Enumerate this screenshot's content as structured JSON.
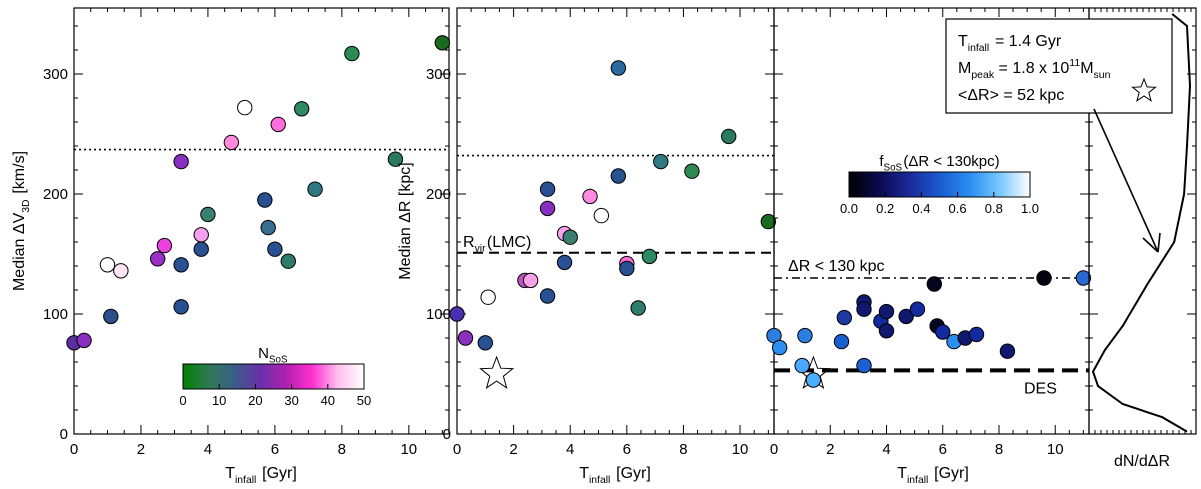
{
  "chart_data": [
    {
      "type": "scatter",
      "panel": "left",
      "ylabel": {
        "prefix": "Median ΔV",
        "sub": "3D",
        "suffix": " [km/s]"
      },
      "xlabel": {
        "prefix": "T",
        "sub": "infall",
        "suffix": " [Gyr]"
      },
      "xlim": [
        0,
        11.2
      ],
      "ylim": [
        0,
        355
      ],
      "xticks": [
        "0",
        "2",
        "4",
        "6",
        "8",
        "10"
      ],
      "yticks": [
        "0",
        "100",
        "200",
        "300"
      ],
      "reference_lines": [
        {
          "style": "dotted",
          "y": 237
        }
      ],
      "colorbar": {
        "title": {
          "prefix": "N",
          "sub": "SoS"
        },
        "range": [
          0,
          50
        ],
        "ticks": [
          "0",
          "10",
          "20",
          "30",
          "40",
          "50"
        ],
        "stops": [
          "#008000",
          "#2f7a55",
          "#3a5e8a",
          "#6a2fa8",
          "#b020b0",
          "#ff30d0",
          "#ffc0f0",
          "#ffffff"
        ]
      },
      "points": [
        {
          "x": 0.0,
          "y": 76,
          "c": "#5a2fa0"
        },
        {
          "x": 0.3,
          "y": 78,
          "c": "#8a2fc0"
        },
        {
          "x": 1.0,
          "y": 141,
          "c": "#ffffff"
        },
        {
          "x": 1.1,
          "y": 98,
          "c": "#2d4f8c"
        },
        {
          "x": 1.4,
          "y": 136,
          "c": "#ffe5f5"
        },
        {
          "x": 2.5,
          "y": 146,
          "c": "#9a30c8"
        },
        {
          "x": 2.7,
          "y": 157,
          "c": "#ee40e0"
        },
        {
          "x": 3.2,
          "y": 106,
          "c": "#2a5094"
        },
        {
          "x": 3.2,
          "y": 141,
          "c": "#2a5094"
        },
        {
          "x": 3.2,
          "y": 227,
          "c": "#8a30c0"
        },
        {
          "x": 3.8,
          "y": 166,
          "c": "#f5a0f0"
        },
        {
          "x": 3.8,
          "y": 154,
          "c": "#2a5094"
        },
        {
          "x": 4.0,
          "y": 183,
          "c": "#3a8070"
        },
        {
          "x": 4.7,
          "y": 243,
          "c": "#ff8ae0"
        },
        {
          "x": 5.1,
          "y": 272,
          "c": "#ffffff"
        },
        {
          "x": 5.7,
          "y": 195,
          "c": "#2a5094"
        },
        {
          "x": 5.8,
          "y": 172,
          "c": "#3a6e90"
        },
        {
          "x": 6.0,
          "y": 154,
          "c": "#2a5094"
        },
        {
          "x": 6.1,
          "y": 258,
          "c": "#ff6cdc"
        },
        {
          "x": 6.4,
          "y": 144,
          "c": "#2e7d6a"
        },
        {
          "x": 6.8,
          "y": 271,
          "c": "#2e8a60"
        },
        {
          "x": 7.2,
          "y": 204,
          "c": "#2f7a80"
        },
        {
          "x": 8.3,
          "y": 317,
          "c": "#2a8a50"
        },
        {
          "x": 9.6,
          "y": 229,
          "c": "#2a7a60"
        },
        {
          "x": 11.0,
          "y": 326,
          "c": "#1a6a20"
        }
      ]
    },
    {
      "type": "scatter",
      "panel": "middle",
      "ylabel": {
        "prefix": "Median ΔR",
        "sub": "",
        "suffix": " [kpc]"
      },
      "xlabel": {
        "prefix": "T",
        "sub": "infall",
        "suffix": " [Gyr]"
      },
      "xlim": [
        0,
        11.2
      ],
      "ylim": [
        0,
        355
      ],
      "xticks": [
        "0",
        "2",
        "4",
        "6",
        "8",
        "10"
      ],
      "yticks": [
        "0",
        "100",
        "200",
        "300"
      ],
      "reference_lines": [
        {
          "style": "dotted",
          "y": 232
        },
        {
          "style": "dashed",
          "y": 151,
          "label": {
            "prefix": "R",
            "sub": "vir",
            "suffix": "(LMC)"
          }
        }
      ],
      "star": {
        "x": 1.4,
        "y": 50
      },
      "points": [
        {
          "x": 0.0,
          "y": 100,
          "c": "#4a2fb0"
        },
        {
          "x": 0.3,
          "y": 80,
          "c": "#8a2fc0"
        },
        {
          "x": 1.0,
          "y": 76,
          "c": "#2a5094"
        },
        {
          "x": 1.1,
          "y": 114,
          "c": "#ffffff"
        },
        {
          "x": 2.4,
          "y": 128,
          "c": "#c050c0"
        },
        {
          "x": 2.6,
          "y": 128,
          "c": "#f8a0e8"
        },
        {
          "x": 3.2,
          "y": 204,
          "c": "#2a5094"
        },
        {
          "x": 3.2,
          "y": 188,
          "c": "#8a30c0"
        },
        {
          "x": 3.2,
          "y": 115,
          "c": "#2a5094"
        },
        {
          "x": 3.8,
          "y": 167,
          "c": "#f5a0f0"
        },
        {
          "x": 3.8,
          "y": 143,
          "c": "#2a5094"
        },
        {
          "x": 4.0,
          "y": 164,
          "c": "#3a8070"
        },
        {
          "x": 4.7,
          "y": 198,
          "c": "#ff8ae0"
        },
        {
          "x": 5.1,
          "y": 182,
          "c": "#ffffff"
        },
        {
          "x": 5.7,
          "y": 305,
          "c": "#2a6aa0"
        },
        {
          "x": 5.7,
          "y": 215,
          "c": "#2a5094"
        },
        {
          "x": 6.0,
          "y": 142,
          "c": "#ff6cdc"
        },
        {
          "x": 6.0,
          "y": 138,
          "c": "#2a5094"
        },
        {
          "x": 6.4,
          "y": 105,
          "c": "#2e7d6a"
        },
        {
          "x": 6.8,
          "y": 148,
          "c": "#2e8a60"
        },
        {
          "x": 7.2,
          "y": 227,
          "c": "#2f7a80"
        },
        {
          "x": 8.3,
          "y": 219,
          "c": "#2a8a50"
        },
        {
          "x": 9.6,
          "y": 248,
          "c": "#2a7a60"
        },
        {
          "x": 11.0,
          "y": 177,
          "c": "#1a6a20"
        }
      ]
    },
    {
      "type": "scatter",
      "panel": "right",
      "xlabel": {
        "prefix": "T",
        "sub": "infall",
        "suffix": " [Gyr]"
      },
      "xlim": [
        0,
        11.2
      ],
      "ylim": [
        0,
        355
      ],
      "xticks": [
        "0",
        "2",
        "4",
        "6",
        "8",
        "10"
      ],
      "reference_lines": [
        {
          "style": "dashdot",
          "y": 130,
          "label": "ΔR < 130 kpc"
        },
        {
          "style": "thickdash",
          "y": 53,
          "label": "DES"
        }
      ],
      "star": {
        "x": 1.4,
        "y": 50
      },
      "colorbar": {
        "title": {
          "prefix": "f",
          "sub": "SoS",
          "suffix": "(ΔR < 130kpc)"
        },
        "range": [
          0,
          1
        ],
        "ticks": [
          "0.0",
          "0.2",
          "0.4",
          "0.6",
          "0.8",
          "1.0"
        ],
        "stops": [
          "#000000",
          "#0a0a50",
          "#1a2a9a",
          "#1a5ad0",
          "#2a8ff0",
          "#78c8ff",
          "#ffffff"
        ]
      },
      "points": [
        {
          "x": 0.0,
          "y": 82,
          "c": "#2a7fe0"
        },
        {
          "x": 0.2,
          "y": 72,
          "c": "#2a8ff0"
        },
        {
          "x": 1.0,
          "y": 57,
          "c": "#4aa8ff"
        },
        {
          "x": 1.1,
          "y": 82,
          "c": "#2a7fe0"
        },
        {
          "x": 1.4,
          "y": 45,
          "c": "#4ab0ff"
        },
        {
          "x": 2.4,
          "y": 77,
          "c": "#1a60d0"
        },
        {
          "x": 2.5,
          "y": 97,
          "c": "#1a3aa0"
        },
        {
          "x": 3.2,
          "y": 110,
          "c": "#101870"
        },
        {
          "x": 3.2,
          "y": 104,
          "c": "#101870"
        },
        {
          "x": 3.2,
          "y": 57,
          "c": "#1a60d0"
        },
        {
          "x": 3.8,
          "y": 94,
          "c": "#142aa0"
        },
        {
          "x": 4.0,
          "y": 86,
          "c": "#101870"
        },
        {
          "x": 4.0,
          "y": 102,
          "c": "#101870"
        },
        {
          "x": 4.7,
          "y": 98,
          "c": "#101870"
        },
        {
          "x": 5.1,
          "y": 104,
          "c": "#142aa0"
        },
        {
          "x": 5.7,
          "y": 125,
          "c": "#060622"
        },
        {
          "x": 5.8,
          "y": 90,
          "c": "#060622"
        },
        {
          "x": 6.0,
          "y": 85,
          "c": "#142aa0"
        },
        {
          "x": 6.4,
          "y": 77,
          "c": "#2a8ff0"
        },
        {
          "x": 6.8,
          "y": 80,
          "c": "#101870"
        },
        {
          "x": 7.2,
          "y": 83,
          "c": "#142aa0"
        },
        {
          "x": 8.3,
          "y": 69,
          "c": "#101870"
        },
        {
          "x": 9.6,
          "y": 130,
          "c": "#040410"
        },
        {
          "x": 11.0,
          "y": 130,
          "c": "#2a6ad0"
        }
      ]
    },
    {
      "type": "line",
      "panel": "histogram",
      "xlabel": "dN/dΔR",
      "ylim": [
        0,
        355
      ],
      "x": [
        0.8,
        0.95,
        0.98,
        0.95,
        0.92,
        0.82,
        0.55,
        0.3,
        0.12,
        0.0,
        0.05,
        0.3,
        0.7,
        0.95
      ],
      "y": [
        350,
        340,
        290,
        240,
        200,
        160,
        125,
        90,
        70,
        52,
        40,
        25,
        14,
        2
      ]
    }
  ],
  "annotation": {
    "line1": {
      "prefix": "T",
      "sub": "infall",
      "suffix": " = 1.4 Gyr"
    },
    "line2": {
      "prefix": "M",
      "sub": "peak",
      "mid": " = 1.8 x 10",
      "sup": "11",
      "end": "M",
      "sub2": "sun"
    },
    "line3": "<ΔR> = 52 kpc"
  }
}
